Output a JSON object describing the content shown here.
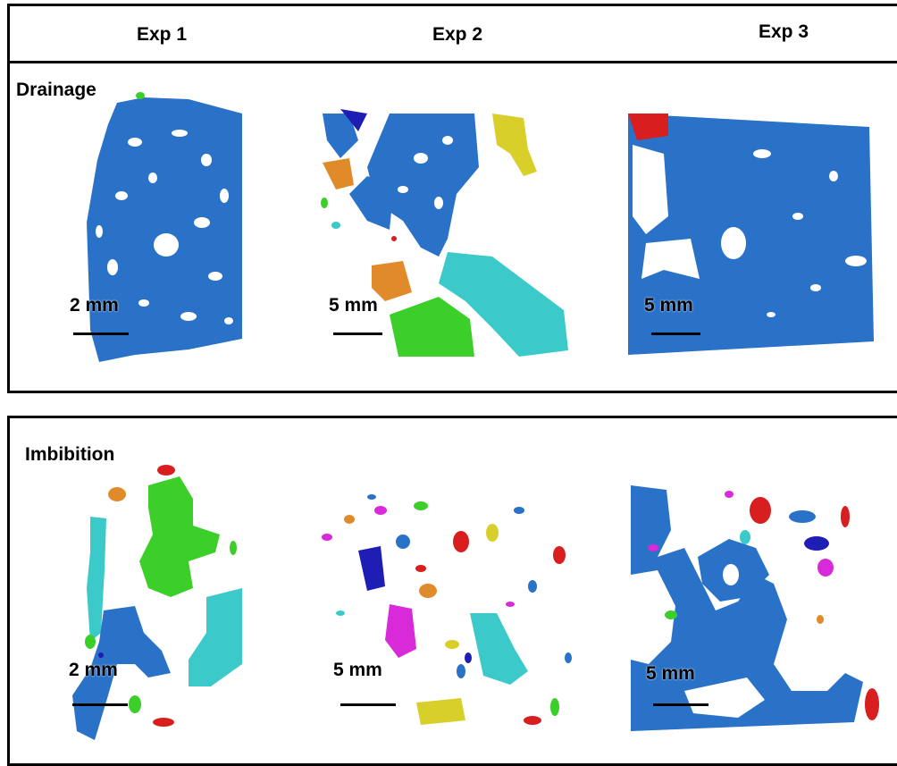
{
  "columns": [
    "Exp 1",
    "Exp 2",
    "Exp 3"
  ],
  "rows": [
    {
      "label": "Drainage",
      "panels": [
        {
          "scale": "2 mm"
        },
        {
          "scale": "5 mm"
        },
        {
          "scale": "5 mm"
        }
      ]
    },
    {
      "label": "Imbibition",
      "panels": [
        {
          "scale": "2 mm"
        },
        {
          "scale": "5 mm"
        },
        {
          "scale": "5 mm"
        }
      ]
    }
  ],
  "colors": {
    "blue": "#2a72c8",
    "cyan": "#3cc9c9",
    "green": "#3ccf2a",
    "orange": "#e08a2a",
    "yellow": "#d8cf2a",
    "red": "#d81e1e",
    "magenta": "#d82ad8",
    "navy": "#1e1eb4"
  }
}
